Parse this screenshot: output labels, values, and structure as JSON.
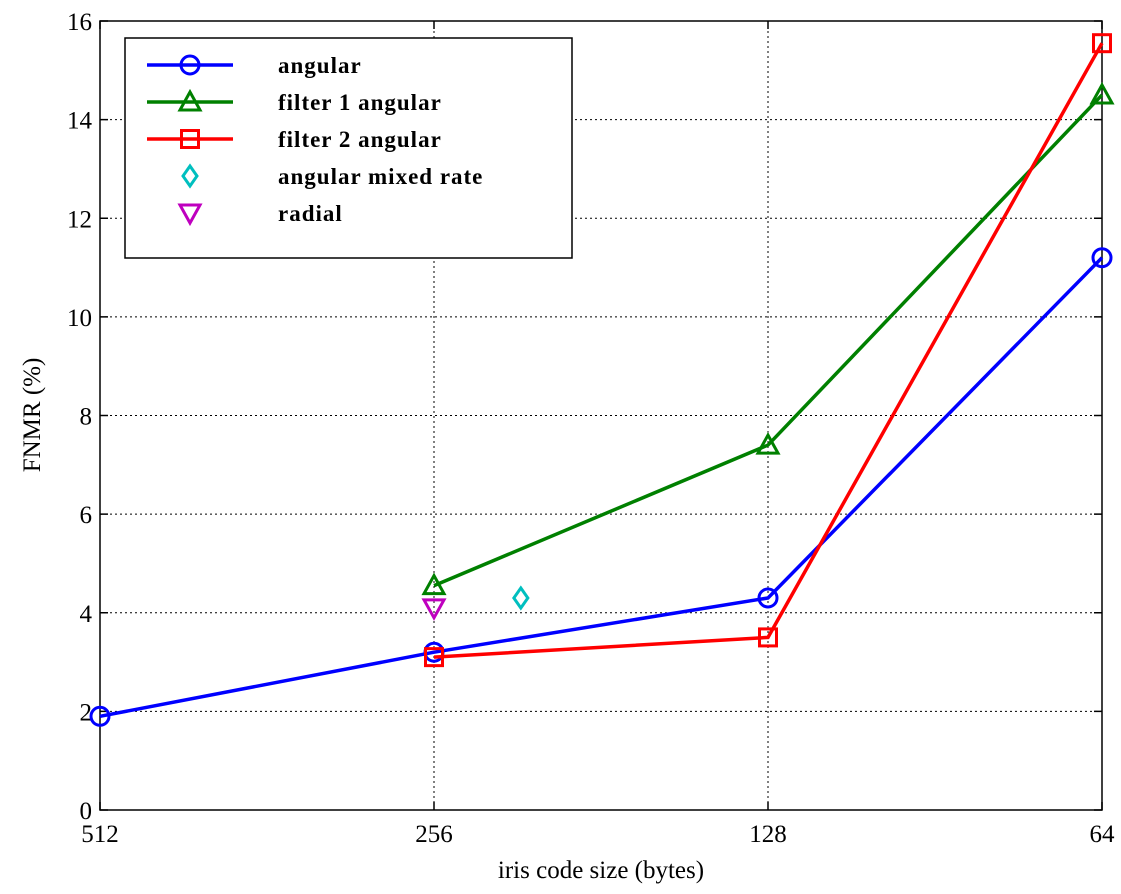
{
  "chart_data": {
    "type": "line",
    "xlabel": "iris code size (bytes)",
    "ylabel": "FNMR (%)",
    "x_categories": [
      "512",
      "256",
      "128",
      "64"
    ],
    "ylim": [
      0,
      16
    ],
    "yticks": [
      "0",
      "2",
      "4",
      "6",
      "8",
      "10",
      "12",
      "14",
      "16"
    ],
    "grid": true,
    "legend_position": "top-left",
    "series": [
      {
        "name": "angular",
        "marker": "circle",
        "color": "#0000ff",
        "line": true,
        "points": [
          {
            "x": 0,
            "y": 1.9
          },
          {
            "x": 1,
            "y": 3.2
          },
          {
            "x": 2,
            "y": 4.3
          },
          {
            "x": 3,
            "y": 11.2
          }
        ]
      },
      {
        "name": "filter 1 angular",
        "marker": "triangle-up",
        "color": "#008000",
        "line": true,
        "points": [
          {
            "x": 1,
            "y": 4.55
          },
          {
            "x": 2,
            "y": 7.4
          },
          {
            "x": 3,
            "y": 14.5
          }
        ]
      },
      {
        "name": "filter 2 angular",
        "marker": "square",
        "color": "#ff0000",
        "line": true,
        "points": [
          {
            "x": 1,
            "y": 3.1
          },
          {
            "x": 2,
            "y": 3.5
          },
          {
            "x": 3,
            "y": 15.55
          }
        ]
      },
      {
        "name": "angular mixed rate",
        "marker": "diamond",
        "color": "#00bfbf",
        "line": false,
        "points": [
          {
            "x": 1.26,
            "y": 4.3
          }
        ]
      },
      {
        "name": "radial",
        "marker": "triangle-down",
        "color": "#bf00bf",
        "line": false,
        "points": [
          {
            "x": 1,
            "y": 4.1
          }
        ]
      }
    ]
  }
}
